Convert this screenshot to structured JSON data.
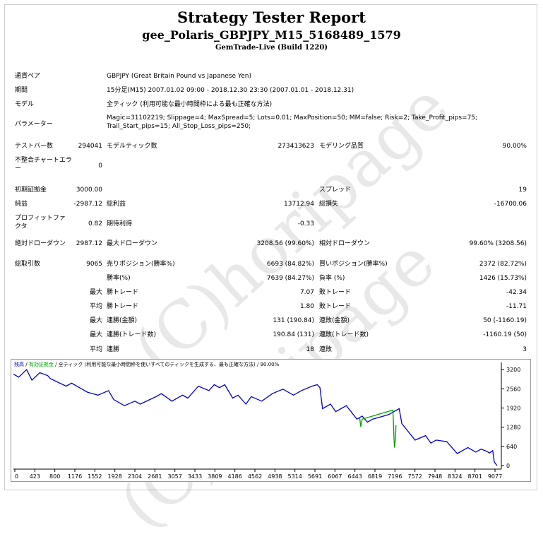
{
  "header": {
    "title": "Strategy Tester Report",
    "subtitle": "gee_Polaris_GBPJPY_M15_5168489_1579",
    "build": "GemTrade-Live (Build 1220)"
  },
  "info": {
    "symbol_label": "通貨ペア",
    "symbol_value": "GBPJPY (Great Britain Pound vs Japanese Yen)",
    "period_label": "期間",
    "period_value": "15分足(M15) 2007.01.02 09:00 - 2018.12.30 23:30 (2007.01.01 - 2018.12.31)",
    "model_label": "モデル",
    "model_value": "全ティック (利用可能な最小時間枠による最も正確な方法)",
    "params_label": "パラメーター",
    "params_value": "Magic=31102219; Slippage=4; MaxSpread=5; Lots=0.01; MaxPosition=50; MM=false; Risk=2; Take_Profit_pips=75; Trail_Start_pips=15; All_Stop_Loss_pips=250;"
  },
  "stats": {
    "bars_label": "テストバー数",
    "bars_value": "294041",
    "ticks_label": "モデルティック数",
    "ticks_value": "273413623",
    "quality_label": "モデリング品質",
    "quality_value": "90.00%",
    "mismatch_label": "不整合チャートエラー",
    "mismatch_value": "0",
    "deposit_label": "初期証拠金",
    "deposit_value": "3000.00",
    "spread_label": "スプレッド",
    "spread_value": "19",
    "net_label": "純益",
    "net_value": "-2987.12",
    "gross_profit_label": "総利益",
    "gross_profit_value": "13712.94",
    "gross_loss_label": "総損失",
    "gross_loss_value": "-16700.06",
    "pf_label": "プロフィットファクタ",
    "pf_value": "0.82",
    "expected_label": "期待利得",
    "expected_value": "-0.33",
    "abs_dd_label": "絶対ドローダウン",
    "abs_dd_value": "2987.12",
    "max_dd_label": "最大ドローダウン",
    "max_dd_value": "3208.56 (99.60%)",
    "rel_dd_label": "相対ドローダウン",
    "rel_dd_value": "99.60% (3208.56)",
    "total_trades_label": "総取引数",
    "total_trades_value": "9065",
    "short_label": "売りポジション(勝率%)",
    "short_value": "6693 (84.82%)",
    "long_label": "買いポジション(勝率%)",
    "long_value": "2372 (82.72%)",
    "win_label": "勝率(%)",
    "win_value": "7639 (84.27%)",
    "loss_label": "負率 (%)",
    "loss_value": "1426 (15.73%)",
    "max_word": "最大",
    "avg_word": "平均",
    "max_win_label": "勝トレード",
    "max_win_value": "7.07",
    "max_loss_label": "敗トレード",
    "max_loss_value": "-42.34",
    "avg_win_label": "勝トレード",
    "avg_win_value": "1.80",
    "avg_loss_label": "敗トレード",
    "avg_loss_value": "-11.71",
    "cons_win_amt_label": "連勝(金額)",
    "cons_win_amt_value": "131 (190.84)",
    "cons_loss_amt_label": "連敗(金額)",
    "cons_loss_amt_value": "50 (-1160.19)",
    "cons_win_cnt_label": "連勝(トレード数)",
    "cons_win_cnt_value": "190.84 (131)",
    "cons_loss_cnt_label": "連敗(トレード数)",
    "cons_loss_cnt_value": "-1160.19 (50)",
    "avg_cons_win_label": "連勝",
    "avg_cons_win_value": "18",
    "avg_cons_loss_label": "連敗",
    "avg_cons_loss_value": "3"
  },
  "watermark_text": "(C)horipage",
  "chart_legend": {
    "balance": "残高",
    "equity": "有効証拠金",
    "model": "全ティック (利用可能な最小時間枠を使いすべてのティックを生成する、最も正確な方法)",
    "quality": "90.00%"
  },
  "colors": {
    "balance": "#0000cc",
    "equity": "#00a000",
    "grid": "#d0d0d0"
  },
  "chart_data": {
    "type": "line",
    "x_ticks": [
      "0",
      "423",
      "800",
      "1176",
      "1552",
      "1928",
      "2304",
      "2681",
      "3057",
      "3433",
      "3809",
      "4186",
      "4562",
      "4938",
      "5314",
      "5691",
      "6067",
      "6443",
      "6819",
      "7196",
      "7572",
      "7948",
      "8324",
      "8701",
      "9077"
    ],
    "y_ticks": [
      "3200",
      "2560",
      "1920",
      "1280",
      "640",
      "0"
    ],
    "ylim": [
      0,
      3300
    ],
    "xlim": [
      0,
      9220
    ],
    "series": [
      {
        "name": "残高",
        "x": [
          0,
          100,
          250,
          350,
          500,
          650,
          700,
          1000,
          1100,
          1250,
          1400,
          1600,
          1800,
          1900,
          2100,
          2300,
          2400,
          2700,
          2800,
          3000,
          3200,
          3300,
          3500,
          3700,
          3800,
          3900,
          4000,
          4150,
          4250,
          4400,
          4500,
          4700,
          4900,
          5100,
          5300,
          5450,
          5650,
          5750,
          5800,
          5850,
          6000,
          6100,
          6300,
          6500,
          6600,
          6700,
          6800,
          7000,
          7100,
          7250,
          7300,
          7350,
          7600,
          7800,
          7900,
          8000,
          8200,
          8400,
          8600,
          8750,
          8850,
          8950,
          9010,
          9070,
          9100,
          9150
        ],
        "values": [
          3050,
          2950,
          3200,
          2850,
          3100,
          3000,
          2900,
          2650,
          2750,
          2600,
          2450,
          2350,
          2500,
          2200,
          2000,
          2150,
          2050,
          2300,
          2400,
          2150,
          2350,
          2250,
          2650,
          2500,
          2700,
          2600,
          2700,
          2250,
          2350,
          2050,
          2300,
          2150,
          2400,
          2550,
          2350,
          2500,
          2650,
          2700,
          2600,
          1900,
          2050,
          1800,
          2000,
          1550,
          1650,
          1450,
          1550,
          1650,
          1700,
          1850,
          1900,
          1400,
          850,
          1000,
          750,
          850,
          800,
          400,
          600,
          450,
          550,
          480,
          420,
          500,
          120,
          0
        ]
      },
      {
        "name": "有効証拠金",
        "x": [
          6550,
          6560,
          6570,
          6580,
          6600,
          7180,
          7190,
          7200,
          7210,
          7230,
          7240
        ],
        "values": [
          1600,
          1500,
          1300,
          1350,
          1550,
          1850,
          1500,
          1000,
          600,
          900,
          1350
        ]
      }
    ]
  }
}
